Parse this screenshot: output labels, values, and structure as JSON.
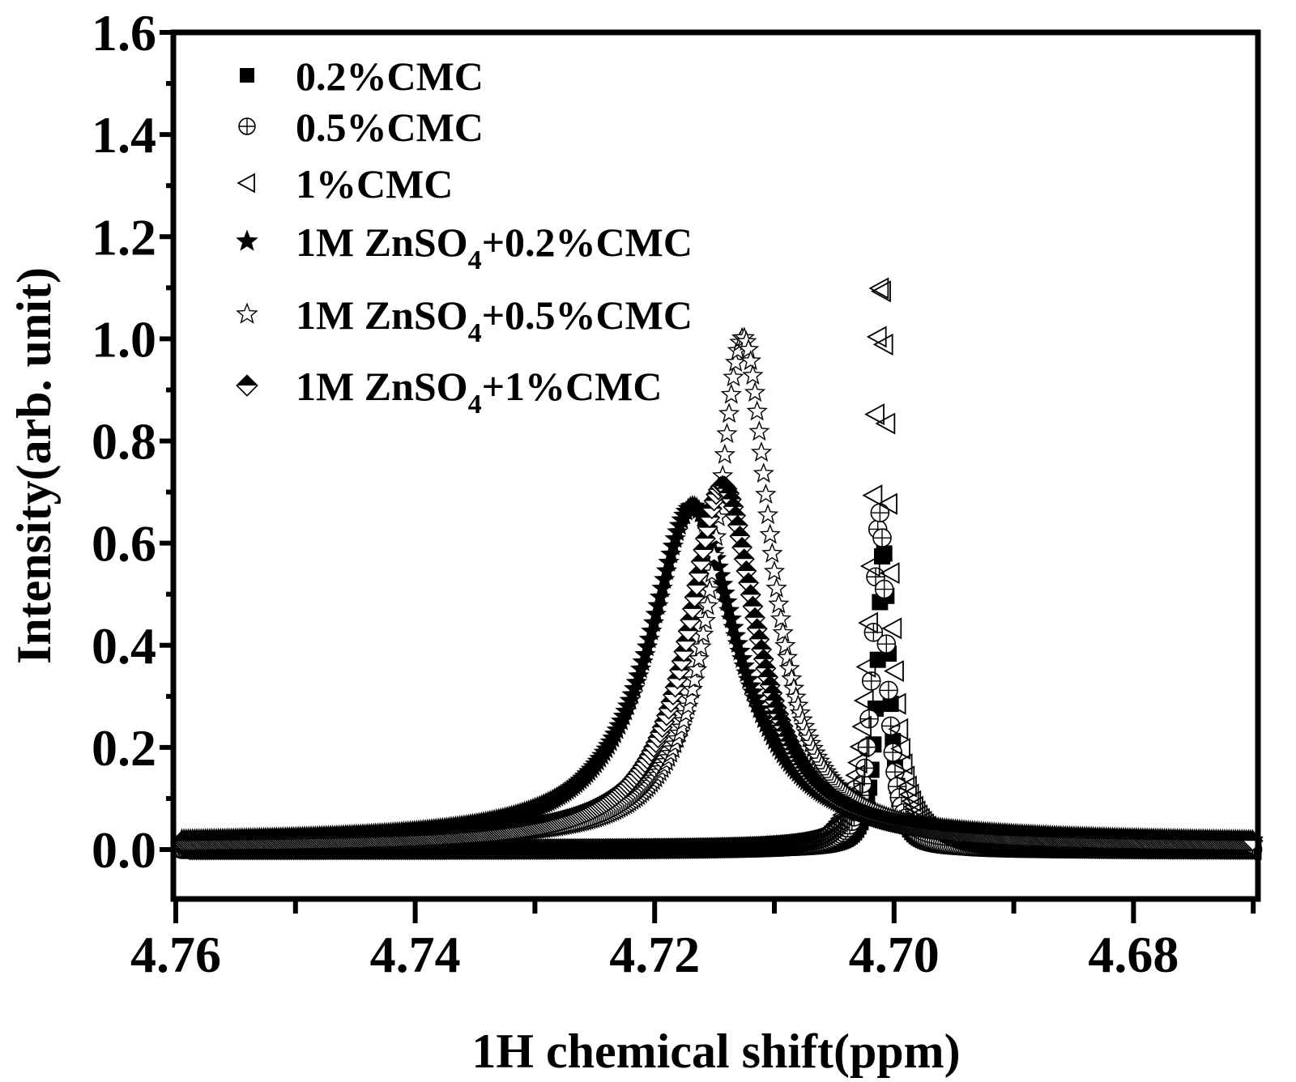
{
  "chart_data": {
    "type": "scatter",
    "title": "",
    "xlabel": "1H chemical shift(ppm)",
    "ylabel": "Intensity(arb. unit)",
    "xlim": [
      4.76,
      4.67
    ],
    "ylim": [
      -0.1,
      1.6
    ],
    "x_reversed": true,
    "grid": false,
    "legend_position": "top-left",
    "xticks": [
      4.76,
      4.74,
      4.72,
      4.7,
      4.68
    ],
    "xtick_labels": [
      "4.76",
      "4.74",
      "4.72",
      "4.70",
      "4.68"
    ],
    "yticks": [
      0.0,
      0.2,
      0.4,
      0.6,
      0.8,
      1.0,
      1.2,
      1.4,
      1.6
    ],
    "ytick_labels": [
      "0.0",
      "0.2",
      "0.4",
      "0.6",
      "0.8",
      "1.0",
      "1.2",
      "1.4",
      "1.6"
    ],
    "series": [
      {
        "name": "0.2%CMC",
        "marker": "filled-square",
        "peak_x": 4.7009,
        "peak_y": 0.59,
        "hwhm": 0.0006
      },
      {
        "name": "0.5%CMC",
        "marker": "crossed-circle",
        "peak_x": 4.7012,
        "peak_y": 0.66,
        "hwhm": 0.0007
      },
      {
        "name": "1%CMC",
        "marker": "open-left-triangle",
        "peak_x": 4.7011,
        "peak_y": 1.11,
        "hwhm": 0.0008
      },
      {
        "name": "1M ZnSO4+0.2%CMC",
        "marker": "filled-star",
        "peak_x": 4.7168,
        "peak_y": 0.66,
        "hwhm": 0.0045
      },
      {
        "name": "1M ZnSO4+0.5%CMC",
        "marker": "open-star",
        "peak_x": 4.7126,
        "peak_y": 0.99,
        "hwhm": 0.0028
      },
      {
        "name": "1M ZnSO4+1%CMC",
        "marker": "half-filled-diamond",
        "peak_x": 4.7143,
        "peak_y": 0.7,
        "hwhm": 0.0035
      }
    ]
  },
  "legend": {
    "items": [
      {
        "prefix": "0.2%CMC",
        "sub": "",
        "suffix": ""
      },
      {
        "prefix": "0.5%CMC",
        "sub": "",
        "suffix": ""
      },
      {
        "prefix": "1%CMC",
        "sub": "",
        "suffix": ""
      },
      {
        "prefix": "1M ZnSO",
        "sub": "4",
        "suffix": "+0.2%CMC"
      },
      {
        "prefix": "1M ZnSO",
        "sub": "4",
        "suffix": "+0.5%CMC"
      },
      {
        "prefix": "1M ZnSO",
        "sub": "4",
        "suffix": "+1%CMC"
      }
    ]
  }
}
